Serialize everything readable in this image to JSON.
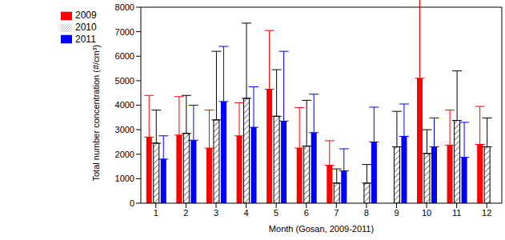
{
  "chart_data": {
    "type": "bar",
    "categories": [
      "1",
      "2",
      "3",
      "4",
      "5",
      "6",
      "7",
      "8",
      "9",
      "10",
      "11",
      "12"
    ],
    "series": [
      {
        "name": "2009",
        "color": "#ff0000",
        "values": [
          2700,
          2780,
          2250,
          2750,
          4650,
          2250,
          1550,
          null,
          null,
          5100,
          2370,
          2400
        ],
        "errors": [
          1700,
          1570,
          1550,
          1350,
          2400,
          1650,
          1000,
          null,
          null,
          3300,
          1430,
          1550
        ]
      },
      {
        "name": "2010",
        "color": "#ffffff",
        "values": [
          2450,
          2850,
          3400,
          4280,
          3550,
          2330,
          820,
          820,
          2300,
          2030,
          3380,
          2300
        ],
        "errors": [
          1350,
          1550,
          2800,
          3070,
          1900,
          1870,
          580,
          760,
          1450,
          970,
          2020,
          1180
        ]
      },
      {
        "name": "2011",
        "color": "#0000ff",
        "values": [
          1800,
          2570,
          4150,
          3100,
          3350,
          2880,
          1320,
          2500,
          2730,
          2300,
          1870,
          null
        ],
        "errors": [
          950,
          1430,
          2250,
          1650,
          2850,
          1570,
          900,
          1420,
          1320,
          1180,
          1430,
          null
        ]
      }
    ],
    "x_label": "Month (Gosan, 2009-2011)",
    "y_label": "Total number concentration (#/cm³)",
    "ylim": [
      0,
      8000
    ],
    "yticks": [
      0,
      1000,
      2000,
      3000,
      4000,
      5000,
      6000,
      7000,
      8000
    ],
    "legend": "upper left",
    "grid": false
  }
}
